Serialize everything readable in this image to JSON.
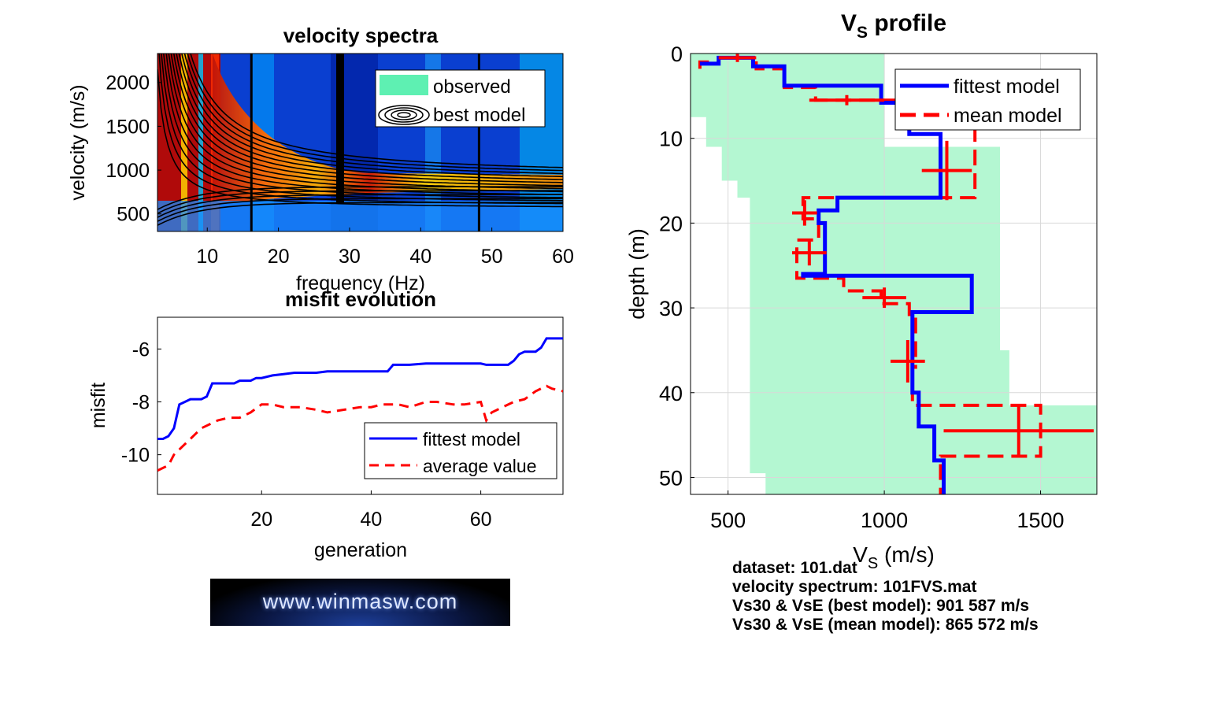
{
  "colors": {
    "fittest": "#0000ff",
    "mean": "#ff0000",
    "observed_band": "#b4f7d2",
    "legend_observed": "#5ef0b2",
    "contours": "#000000"
  },
  "chart_data": [
    {
      "type": "heatmap",
      "title": "velocity spectra",
      "xlabel": "frequency (Hz)",
      "ylabel": "velocity (m/s)",
      "xlim": [
        3,
        60
      ],
      "ylim": [
        300,
        2330
      ],
      "xticks": [
        "10",
        "20",
        "30",
        "40",
        "50",
        "60"
      ],
      "yticks": [
        "500",
        "1000",
        "1500",
        "2000"
      ],
      "legend": {
        "placement": "top-right",
        "entries": [
          "observed",
          "best model"
        ]
      },
      "grid": false
    },
    {
      "type": "line",
      "title": "misfit evolution",
      "xlabel": "generation",
      "ylabel": "misfit",
      "xlim": [
        1,
        75
      ],
      "ylim": [
        -11.5,
        -4.8
      ],
      "xticks": [
        "20",
        "40",
        "60"
      ],
      "yticks": [
        "-6",
        "-8",
        "-10"
      ],
      "legend": {
        "placement": "bottom-right"
      },
      "grid": false,
      "series": [
        {
          "name": "fittest model",
          "style": "solid",
          "x": [
            1,
            2,
            3,
            4,
            5,
            6,
            7,
            8,
            9,
            10,
            11,
            12,
            13,
            14,
            15,
            16,
            17,
            18,
            19,
            20,
            22,
            24,
            26,
            28,
            30,
            32,
            35,
            40,
            43,
            44,
            47,
            50,
            55,
            58,
            60,
            61,
            63,
            65,
            66,
            67,
            68,
            69,
            70,
            71,
            72,
            73,
            74,
            75
          ],
          "values": [
            -9.4,
            -9.4,
            -9.3,
            -9.0,
            -8.1,
            -8.0,
            -7.9,
            -7.9,
            -7.9,
            -7.8,
            -7.3,
            -7.3,
            -7.3,
            -7.3,
            -7.3,
            -7.2,
            -7.2,
            -7.2,
            -7.1,
            -7.1,
            -7.0,
            -6.95,
            -6.9,
            -6.9,
            -6.9,
            -6.85,
            -6.85,
            -6.85,
            -6.85,
            -6.6,
            -6.6,
            -6.55,
            -6.55,
            -6.55,
            -6.55,
            -6.6,
            -6.6,
            -6.6,
            -6.45,
            -6.2,
            -6.1,
            -6.1,
            -6.1,
            -5.95,
            -5.6,
            -5.6,
            -5.6,
            -5.6
          ]
        },
        {
          "name": "average value",
          "style": "dashed",
          "x": [
            1,
            2,
            3,
            4,
            5,
            6,
            7,
            8,
            9,
            10,
            12,
            14,
            16,
            18,
            20,
            22,
            24,
            27,
            30,
            32,
            35,
            38,
            40,
            42,
            45,
            47,
            50,
            52,
            55,
            57,
            60,
            61,
            62,
            64,
            66,
            68,
            70,
            72,
            73,
            75
          ],
          "values": [
            -10.6,
            -10.5,
            -10.4,
            -10.0,
            -9.8,
            -9.6,
            -9.4,
            -9.2,
            -9.0,
            -8.9,
            -8.7,
            -8.6,
            -8.6,
            -8.4,
            -8.1,
            -8.1,
            -8.2,
            -8.2,
            -8.3,
            -8.4,
            -8.3,
            -8.2,
            -8.2,
            -8.1,
            -8.1,
            -8.2,
            -8.0,
            -8.0,
            -8.1,
            -8.1,
            -8.0,
            -8.7,
            -8.4,
            -8.2,
            -8.0,
            -7.9,
            -7.6,
            -7.4,
            -7.5,
            -7.6
          ]
        }
      ]
    },
    {
      "type": "line",
      "title": "V",
      "title_sub": "S",
      "title_rest": " profile",
      "xlabel": "V",
      "xlabel_sub": "S",
      "xlabel_rest": " (m/s)",
      "ylabel": "depth (m)",
      "xlim": [
        380,
        1680
      ],
      "ylim": [
        0,
        52
      ],
      "y_reversed": true,
      "xticks": [
        "500",
        "1000",
        "1500"
      ],
      "yticks": [
        "0",
        "10",
        "20",
        "30",
        "40",
        "50"
      ],
      "legend": {
        "placement": "top-right"
      },
      "grid": true,
      "observed_band": {
        "depth": [
          0,
          7.5,
          7.5,
          11,
          11,
          15,
          15,
          17,
          17,
          27,
          27,
          35,
          35,
          41.5,
          41.5,
          45.5,
          45.5,
          49.5,
          49.5,
          52
        ],
        "left": [
          380,
          380,
          430,
          430,
          480,
          480,
          530,
          530,
          570,
          570,
          570,
          570,
          570,
          570,
          570,
          570,
          570,
          570,
          620,
          620
        ],
        "right": [
          1000,
          1000,
          1000,
          1000,
          1370,
          1370,
          1370,
          1370,
          1370,
          1370,
          1370,
          1370,
          1400,
          1400,
          1680,
          1680,
          1680,
          1680,
          1680,
          1680
        ]
      },
      "series": [
        {
          "name": "fittest model",
          "style": "solid",
          "vs": [
            410,
            470,
            470,
            580,
            580,
            680,
            680,
            990,
            990,
            1140,
            1140,
            1080,
            1080,
            1180,
            1180,
            850,
            850,
            790,
            790,
            810,
            810,
            740,
            740,
            740,
            740,
            1280,
            1280,
            1090,
            1090,
            1090,
            1090,
            1110,
            1110,
            1160,
            1160,
            1190,
            1190
          ],
          "depth": [
            1.2,
            1.2,
            0.5,
            0.5,
            1.5,
            1.5,
            3.8,
            3.8,
            5.8,
            5.8,
            6.0,
            6.0,
            9.5,
            9.5,
            17.0,
            17.0,
            18.5,
            18.5,
            20.0,
            20.0,
            26.0,
            26.0,
            26.2,
            26.2,
            26.2,
            26.2,
            30.5,
            30.5,
            37.5,
            37.5,
            40.0,
            40.0,
            44.0,
            44.0,
            48.0,
            48.0,
            52.0
          ]
        },
        {
          "name": "mean model",
          "style": "dashed",
          "vs": [
            410,
            410,
            470,
            470,
            590,
            590,
            680,
            680,
            780,
            780,
            1090,
            1090,
            1290,
            1290,
            740,
            740,
            790,
            790,
            720,
            720,
            870,
            870,
            990,
            990,
            1080,
            1080,
            1100,
            1100,
            1090,
            1090,
            1500,
            1500,
            1180,
            1180,
            1180
          ],
          "depth": [
            1.8,
            1.0,
            1.0,
            0.5,
            0.5,
            1.8,
            1.8,
            4.0,
            4.0,
            5.5,
            5.5,
            7.0,
            7.0,
            17.0,
            17.0,
            19.5,
            19.5,
            22.0,
            22.0,
            26.5,
            26.5,
            28.0,
            28.0,
            29.5,
            29.5,
            31.0,
            31.0,
            37.0,
            37.0,
            41.5,
            41.5,
            47.5,
            47.5,
            48.5,
            52.0
          ]
        }
      ],
      "errorbars": [
        {
          "vs": 530,
          "depth": 0.5,
          "dx": 60,
          "dy": 0.5
        },
        {
          "vs": 880,
          "depth": 5.5,
          "dx": 120,
          "dy": 0.6
        },
        {
          "vs": 1200,
          "depth": 13.8,
          "dx": 80,
          "dy": 3.5
        },
        {
          "vs": 745,
          "depth": 18.8,
          "dx": 40,
          "dy": 1.5
        },
        {
          "vs": 760,
          "depth": 23.5,
          "dx": 55,
          "dy": 1.5
        },
        {
          "vs": 1000,
          "depth": 28.8,
          "dx": 70,
          "dy": 1.2
        },
        {
          "vs": 1075,
          "depth": 36.3,
          "dx": 55,
          "dy": 2.5
        },
        {
          "vs": 1430,
          "depth": 44.5,
          "dx": 240,
          "dy": 3.0
        }
      ]
    }
  ],
  "info": {
    "line1": "dataset: 101.dat",
    "line2": "velocity spectrum: 101FVS.mat",
    "line3": "Vs30 & VsE (best model): 901  587 m/s",
    "line4": "Vs30 & VsE (mean model): 865  572 m/s"
  },
  "banner": {
    "text": "www.winmasw.com"
  }
}
